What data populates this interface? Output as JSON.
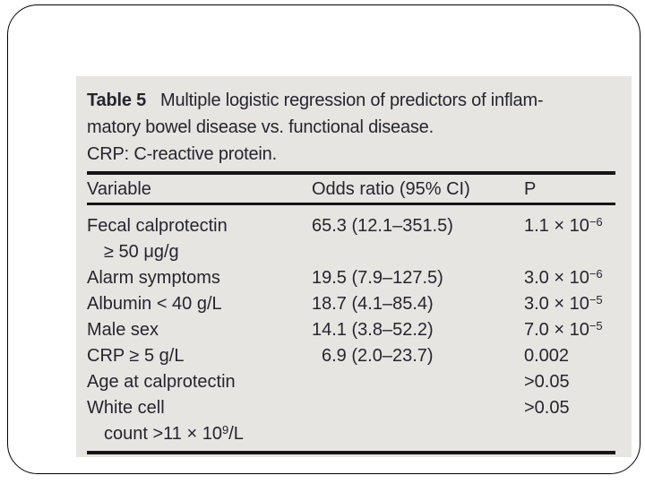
{
  "slide": {
    "background": "#ffffff",
    "border_color": "#000000"
  },
  "figure": {
    "background": "#e7e5e2",
    "text_color": "#25252e",
    "rule_color": "#151515",
    "caption": {
      "label": "Table 5",
      "line1": "Multiple logistic regression of predictors of inflam-",
      "line2": "matory bowel disease vs. functional disease.",
      "line3": "CRP: C-reactive protein."
    },
    "header": {
      "variable": "Variable",
      "odds": "Odds ratio (95% CI)",
      "p": "P"
    },
    "rows": [
      {
        "variable": "Fecal calprotectin",
        "variable2_pre": "≥ 50 μg/g",
        "variable2_sup": "",
        "variable2_post": "",
        "odds": "65.3 (12.1–351.5)",
        "p_base": "1.1 × 10",
        "p_exp": "−6"
      },
      {
        "variable": "Alarm symptoms",
        "odds": "19.5 (7.9–127.5)",
        "p_base": "3.0 × 10",
        "p_exp": "−6"
      },
      {
        "variable": "Albumin < 40 g/L",
        "odds": "18.7 (4.1–85.4)",
        "p_base": "3.0 × 10",
        "p_exp": "−5"
      },
      {
        "variable": "Male sex",
        "odds": "14.1 (3.8–52.2)",
        "p_base": "7.0 × 10",
        "p_exp": "−5"
      },
      {
        "variable": "CRP ≥ 5 g/L",
        "odds": "6.9 (2.0–23.7)",
        "p_base": "0.002",
        "p_exp": ""
      },
      {
        "variable": "Age at calprotectin",
        "odds": "",
        "p_base": ">0.05",
        "p_exp": ""
      },
      {
        "variable": "White cell",
        "variable2_pre": "count >11 × 10",
        "variable2_sup": "9",
        "variable2_post": "/L",
        "odds": "",
        "p_base": ">0.05",
        "p_exp": ""
      }
    ]
  }
}
